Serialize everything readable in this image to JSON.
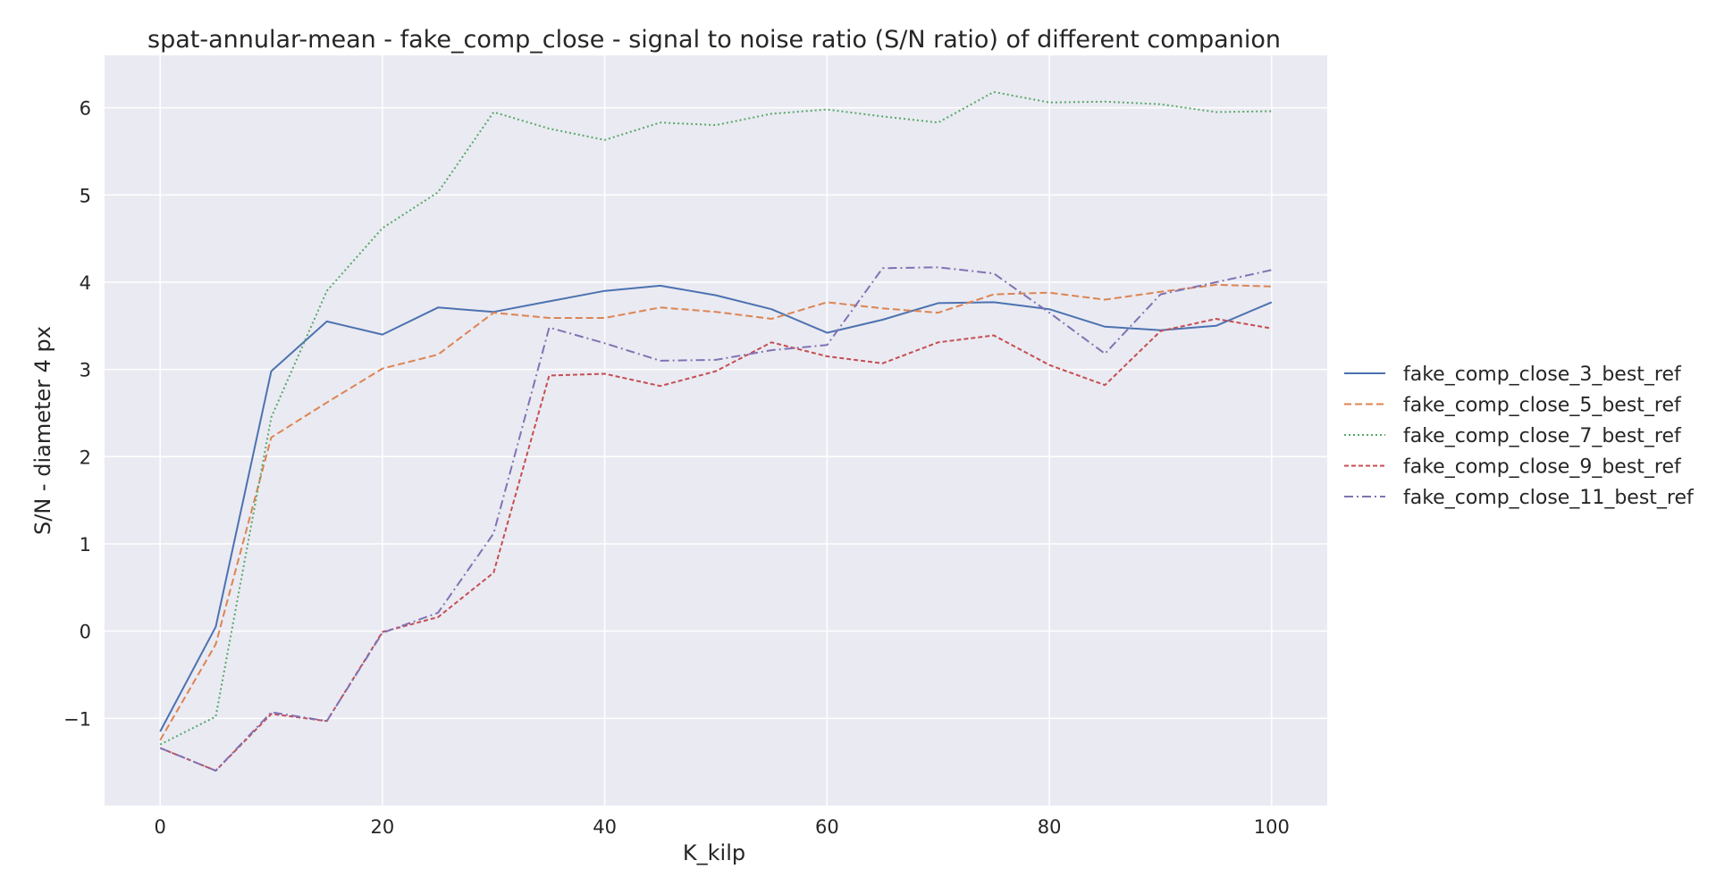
{
  "chart_data": {
    "type": "line",
    "title": "spat-annular-mean - fake_comp_close - signal to noise ratio (S/N ratio) of different companion",
    "xlabel": "K_kilp",
    "ylabel": "S/N - diameter 4 px",
    "xlim": [
      -5,
      105
    ],
    "ylim": [
      -2.0,
      6.6
    ],
    "x_ticks": [
      0,
      20,
      40,
      60,
      80,
      100
    ],
    "y_ticks": [
      -1,
      0,
      1,
      2,
      3,
      4,
      5,
      6
    ],
    "y_tick_labels": [
      "−1",
      "0",
      "1",
      "2",
      "3",
      "4",
      "5",
      "6"
    ],
    "grid": true,
    "legend_position": "outside-right",
    "x": [
      0,
      5,
      10,
      15,
      20,
      25,
      30,
      35,
      40,
      45,
      50,
      55,
      60,
      65,
      70,
      75,
      80,
      85,
      90,
      95,
      100
    ],
    "series": [
      {
        "name": "fake_comp_close_3_best_ref",
        "color": "#4c72b0",
        "dash": "solid",
        "values": [
          -1.15,
          0.05,
          2.98,
          3.55,
          3.4,
          3.71,
          3.66,
          3.78,
          3.9,
          3.96,
          3.85,
          3.69,
          3.42,
          3.57,
          3.76,
          3.77,
          3.69,
          3.49,
          3.45,
          3.5,
          3.77
        ]
      },
      {
        "name": "fake_comp_close_5_best_ref",
        "color": "#dd8452",
        "dash": "dashed",
        "values": [
          -1.25,
          -0.15,
          2.22,
          2.62,
          3.01,
          3.17,
          3.65,
          3.59,
          3.59,
          3.71,
          3.66,
          3.58,
          3.77,
          3.7,
          3.65,
          3.86,
          3.88,
          3.8,
          3.89,
          3.97,
          3.95
        ]
      },
      {
        "name": "fake_comp_close_7_best_ref",
        "color": "#55a868",
        "dash": "dotted",
        "values": [
          -1.3,
          -0.98,
          2.45,
          3.9,
          4.62,
          5.03,
          5.95,
          5.76,
          5.63,
          5.83,
          5.8,
          5.93,
          5.98,
          5.9,
          5.83,
          6.18,
          6.06,
          6.07,
          6.04,
          5.95,
          5.96
        ]
      },
      {
        "name": "fake_comp_close_9_best_ref",
        "color": "#c44e52",
        "dash": "densely-dashed",
        "values": [
          -1.34,
          -1.6,
          -0.95,
          -1.03,
          -0.01,
          0.16,
          0.67,
          2.93,
          2.95,
          2.81,
          2.98,
          3.31,
          3.15,
          3.07,
          3.31,
          3.39,
          3.05,
          2.82,
          3.44,
          3.58,
          3.47
        ]
      },
      {
        "name": "fake_comp_close_11_best_ref",
        "color": "#8172b3",
        "dash": "dashdot",
        "values": [
          -1.34,
          -1.6,
          -0.93,
          -1.03,
          -0.02,
          0.21,
          1.12,
          3.48,
          3.3,
          3.1,
          3.11,
          3.22,
          3.28,
          4.16,
          4.17,
          4.1,
          3.65,
          3.18,
          3.86,
          4.0,
          4.14
        ]
      }
    ]
  }
}
